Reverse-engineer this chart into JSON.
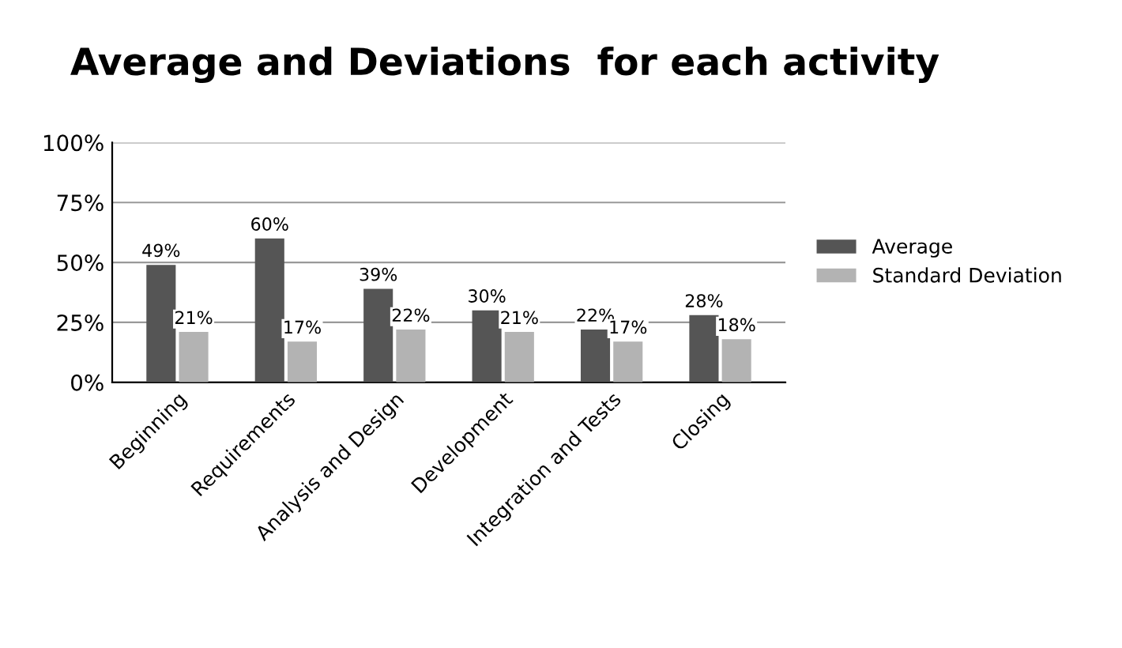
{
  "chart_data": {
    "type": "bar",
    "title": "Average and Deviations  for each activity",
    "categories": [
      "Beginning",
      "Requirements",
      "Analysis and Design",
      "Development",
      "Integration and Tests",
      "Closing"
    ],
    "series": [
      {
        "name": "Average",
        "color": "#555555",
        "values": [
          49,
          60,
          39,
          30,
          22,
          28
        ],
        "value_labels": [
          "49%",
          "60%",
          "39%",
          "30%",
          "22%",
          "28%"
        ]
      },
      {
        "name": "Standard Deviation",
        "color": "#b3b3b3",
        "values": [
          21,
          17,
          22,
          21,
          17,
          18
        ],
        "value_labels": [
          "21%",
          "17%",
          "22%",
          "21%",
          "17%",
          "18%"
        ]
      }
    ],
    "ylim": [
      0,
      100
    ],
    "yticks": [
      {
        "value": 0,
        "label": "0%"
      },
      {
        "value": 25,
        "label": "25%"
      },
      {
        "value": 50,
        "label": "50%"
      },
      {
        "value": 75,
        "label": "75%"
      },
      {
        "value": 100,
        "label": "100%"
      }
    ],
    "grid": "y",
    "legend": "right"
  }
}
